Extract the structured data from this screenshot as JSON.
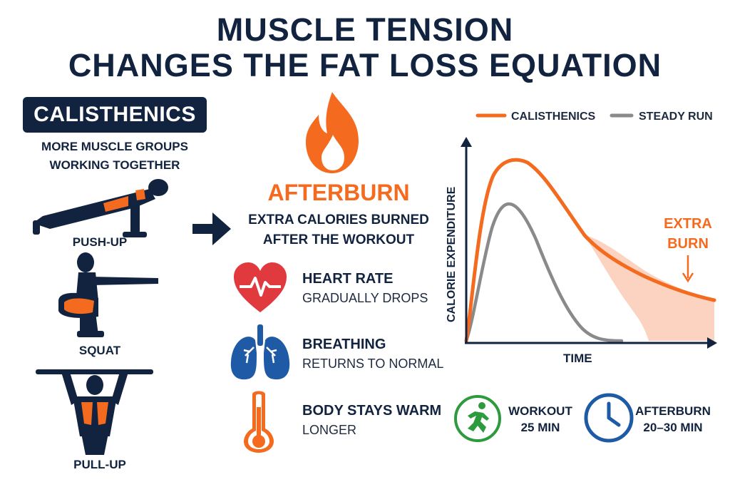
{
  "title": {
    "line1": "MUSCLE TENSION",
    "line2": "CHANGES THE FAT LOSS EQUATION"
  },
  "left": {
    "badge": "CALISTHENICS",
    "subtitle_line1": "MORE MUSCLE GROUPS",
    "subtitle_line2": "WORKING TOGETHER",
    "exercises": [
      {
        "label": "PUSH-UP",
        "icon": "push-up-figure"
      },
      {
        "label": "SQUAT",
        "icon": "squat-figure"
      },
      {
        "label": "PULL-UP",
        "icon": "pull-up-figure"
      }
    ]
  },
  "middle": {
    "flame_icon": "flame-icon",
    "title": "AFTERBURN",
    "sub_line1": "EXTRA CALORIES BURNED",
    "sub_line2": "AFTER THE WORKOUT",
    "effects": [
      {
        "icon": "heart-rate-icon",
        "head": "HEART RATE",
        "desc": "GRADUALLY DROPS"
      },
      {
        "icon": "lungs-icon",
        "head": "BREATHING",
        "desc": "RETURNS TO NORMAL"
      },
      {
        "icon": "thermometer-icon",
        "head": "BODY STAYS WARM",
        "desc": "LONGER"
      }
    ]
  },
  "chart_data": {
    "type": "area",
    "xlabel": "TIME",
    "ylabel": "CALORIE EXPENDITURE",
    "series": [
      {
        "name": "CALISTHENICS",
        "color": "#f46a1e"
      },
      {
        "name": "STEADY RUN",
        "color": "#8a8a8a"
      }
    ],
    "annotation": {
      "line1": "EXTRA",
      "line2": "BURN"
    },
    "fill_color": "#fbd3c0"
  },
  "stats": [
    {
      "icon": "running-person-icon",
      "line1": "WORKOUT",
      "line2": "25 MIN",
      "color": "#2e9a3e"
    },
    {
      "icon": "clock-icon",
      "line1": "AFTERBURN",
      "line2": "20–30 MIN",
      "color": "#1f5aa6"
    }
  ],
  "colors": {
    "navy": "#12233f",
    "orange": "#f46a1e",
    "red": "#e03a3e",
    "blue": "#1f5aa6",
    "green": "#2e9a3e"
  }
}
